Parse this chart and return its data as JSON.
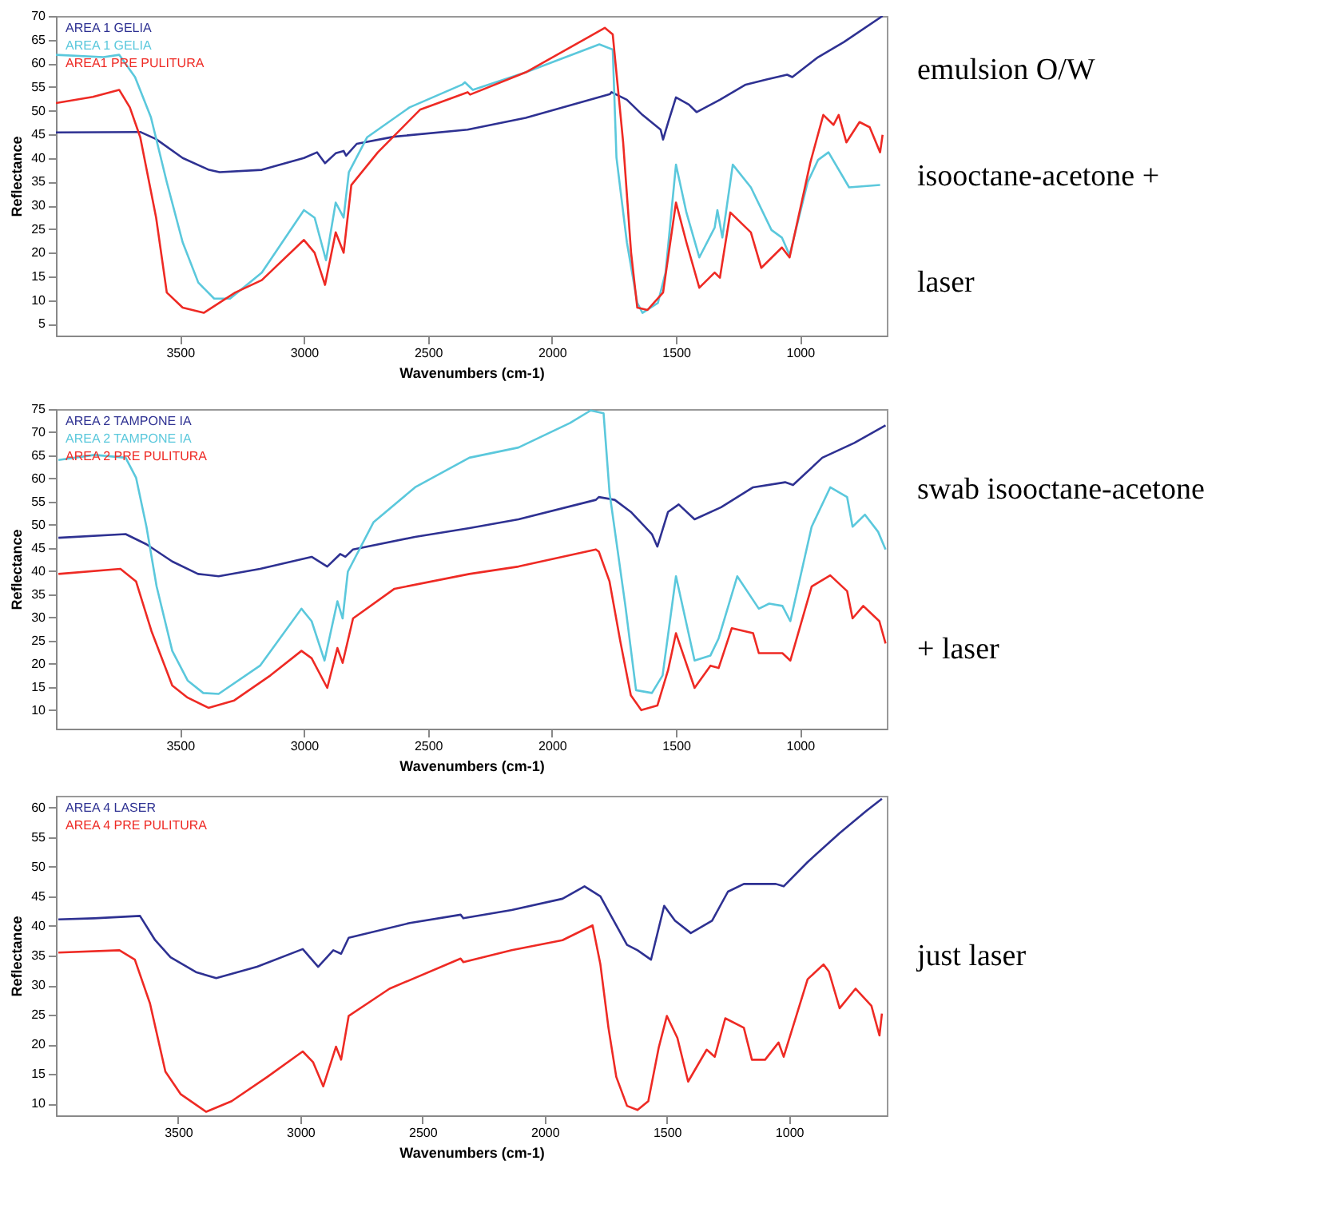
{
  "chart_data": [
    {
      "type": "line",
      "xlabel": "Wavenumbers (cm-1)",
      "ylabel": "Reflectance",
      "xlim": [
        4000,
        650
      ],
      "xticks": [
        3500,
        3000,
        2500,
        2000,
        1500,
        1000
      ],
      "ylim": [
        2.5,
        70
      ],
      "yticks": [
        5,
        10,
        15,
        20,
        25,
        30,
        35,
        40,
        45,
        50,
        55,
        60,
        65,
        70
      ],
      "grid": false,
      "legend": "top left",
      "marker": "none",
      "line_style": "solid",
      "annotations": [
        "emulsion O/W",
        "isooctane-acetone +",
        "laser"
      ],
      "series": [
        {
          "name": "AREA 1 GELIA",
          "color": "#2e3192",
          "x": [
            4000,
            3660,
            3596,
            3489,
            3383,
            3340,
            3170,
            3000,
            2947,
            2915,
            2872,
            2840,
            2830,
            2787,
            2638,
            2340,
            2106,
            1766,
            1760,
            1698,
            1635,
            1562,
            1552,
            1531,
            1500,
            1448,
            1417,
            1323,
            1219,
            1135,
            1052,
            1031,
            927,
            823,
            667
          ],
          "values": [
            45.4,
            45.5,
            44,
            40,
            37.5,
            37,
            37.5,
            40,
            41.2,
            38.9,
            41,
            41.5,
            40.5,
            43,
            44.5,
            46,
            48.5,
            53.5,
            53.9,
            52.3,
            49.1,
            46,
            43.9,
            47.6,
            52.8,
            51.3,
            49.7,
            52.3,
            55.5,
            56.6,
            57.6,
            57.1,
            61.3,
            64.5,
            70
          ]
        },
        {
          "name": "AREA 1 GELIA",
          "color": "#5bc8dc",
          "x": [
            4000,
            3809,
            3745,
            3681,
            3617,
            3553,
            3489,
            3426,
            3362,
            3298,
            3170,
            3000,
            2957,
            2911,
            2872,
            2840,
            2819,
            2745,
            2574,
            2362,
            2351,
            2319,
            2106,
            1809,
            1755,
            1740,
            1698,
            1656,
            1635,
            1573,
            1542,
            1500,
            1458,
            1406,
            1344,
            1333,
            1313,
            1271,
            1198,
            1115,
            1073,
            1042,
            969,
            927,
            885,
            802,
            677
          ],
          "values": [
            61.8,
            61.3,
            61.8,
            57.1,
            48.6,
            34.9,
            22.2,
            13.7,
            10.3,
            10.3,
            15.8,
            29,
            27.4,
            18.4,
            30.6,
            27.4,
            37,
            44.4,
            50.7,
            55.5,
            56,
            54.4,
            58.1,
            64,
            62.9,
            40.1,
            22.2,
            9.4,
            7.3,
            9.4,
            15.8,
            38.6,
            28.5,
            19,
            25.3,
            29,
            23.2,
            38.6,
            33.8,
            24.8,
            23.2,
            19.5,
            34.9,
            39.6,
            41.2,
            33.8,
            34.3
          ]
        },
        {
          "name": "AREA1 PRE PULITURA",
          "color": "#ee2a24",
          "x": [
            4000,
            3851,
            3745,
            3702,
            3660,
            3596,
            3553,
            3489,
            3404,
            3277,
            3170,
            3000,
            2957,
            2915,
            2872,
            2840,
            2809,
            2702,
            2532,
            2340,
            2330,
            2106,
            1851,
            1787,
            1755,
            1713,
            1681,
            1656,
            1615,
            1552,
            1500,
            1458,
            1406,
            1344,
            1323,
            1281,
            1198,
            1156,
            1073,
            1042,
            958,
            906,
            865,
            844,
            813,
            760,
            719,
            677,
            667
          ],
          "values": [
            51.6,
            52.9,
            54.4,
            50.7,
            44.4,
            27.4,
            11.6,
            8.4,
            7.3,
            11.6,
            14.2,
            22.7,
            20,
            13.2,
            24.3,
            20,
            34.3,
            41.2,
            50.2,
            53.9,
            53.4,
            58.1,
            65.6,
            67.5,
            66.1,
            43.3,
            20,
            8.4,
            7.9,
            11.6,
            30.6,
            22.2,
            12.6,
            15.8,
            14.7,
            28.5,
            24.3,
            16.8,
            21.1,
            19,
            39.1,
            49.1,
            47,
            49.1,
            43.3,
            47.6,
            46.5,
            41.2,
            44.9
          ]
        }
      ]
    },
    {
      "type": "line",
      "xlabel": "Wavenumbers (cm-1)",
      "ylabel": "Reflectance",
      "xlim": [
        4000,
        650
      ],
      "xticks": [
        3500,
        3000,
        2500,
        2000,
        1500,
        1000
      ],
      "ylim": [
        6,
        75
      ],
      "yticks": [
        10,
        15,
        20,
        25,
        30,
        35,
        40,
        45,
        50,
        55,
        60,
        65,
        70,
        75
      ],
      "grid": false,
      "legend": "top left",
      "marker": "none",
      "line_style": "solid",
      "annotations": [
        "swab isooctane-acetone",
        "+ laser"
      ],
      "series": [
        {
          "name": "AREA 2 TAMPONE IA",
          "color": "#2e3192",
          "x": [
            3990,
            3719,
            3635,
            3531,
            3427,
            3344,
            3177,
            2969,
            2906,
            2854,
            2833,
            2802,
            2552,
            2333,
            2135,
            1823,
            1811,
            1747,
            1682,
            1597,
            1575,
            1532,
            1489,
            1425,
            1318,
            1189,
            1060,
            1028,
            910,
            781,
            655
          ],
          "values": [
            47.2,
            48,
            45.8,
            42.1,
            39.4,
            38.9,
            40.5,
            43.1,
            41,
            43.7,
            43.1,
            44.7,
            47.4,
            49.3,
            51.2,
            55.4,
            56,
            55.4,
            52.8,
            48,
            45.3,
            52.8,
            54.4,
            51.2,
            53.8,
            58.1,
            59.2,
            58.6,
            64.5,
            67.7,
            71.5
          ]
        },
        {
          "name": "AREA 2 TAMPONE IA",
          "color": "#5bc8dc",
          "x": [
            3990,
            3844,
            3719,
            3677,
            3635,
            3594,
            3531,
            3469,
            3406,
            3344,
            3177,
            3010,
            2969,
            2917,
            2865,
            2844,
            2823,
            2719,
            2552,
            2333,
            2135,
            1927,
            1844,
            1792,
            1768,
            1704,
            1661,
            1597,
            1554,
            1500,
            1425,
            1361,
            1328,
            1253,
            1166,
            1124,
            1071,
            1039,
            953,
            878,
            810,
            788,
            738,
            685,
            655
          ],
          "values": [
            64,
            65.1,
            64.5,
            60.2,
            49.6,
            36.7,
            22.8,
            16.4,
            13.7,
            13.5,
            19.6,
            31.9,
            29.2,
            20.7,
            33.5,
            29.8,
            39.9,
            50.6,
            58.1,
            64.5,
            66.7,
            72,
            74.7,
            74.1,
            57,
            32.5,
            14.3,
            13.7,
            17.5,
            38.9,
            20.7,
            21.8,
            25.5,
            38.9,
            31.9,
            33,
            32.5,
            29.2,
            49.6,
            58.1,
            56,
            49.6,
            52.2,
            48.5,
            44.7
          ]
        },
        {
          "name": "AREA 2 PRE PULITURA",
          "color": "#ee2a24",
          "x": [
            3990,
            3740,
            3677,
            3615,
            3531,
            3469,
            3385,
            3281,
            3135,
            3010,
            2969,
            2906,
            2865,
            2844,
            2802,
            2635,
            2333,
            2135,
            1823,
            1811,
            1768,
            1725,
            1682,
            1640,
            1575,
            1532,
            1500,
            1425,
            1361,
            1328,
            1275,
            1189,
            1166,
            1071,
            1039,
            953,
            878,
            810,
            788,
            745,
            680,
            655
          ],
          "values": [
            39.4,
            40.5,
            37.8,
            27.1,
            15.3,
            12.7,
            10.5,
            12.1,
            17.5,
            22.8,
            21.2,
            14.8,
            23.4,
            20.2,
            29.8,
            36.2,
            39.4,
            41,
            44.7,
            44.2,
            37.8,
            25,
            13.2,
            10,
            11,
            18.6,
            26.6,
            14.8,
            19.6,
            19.1,
            27.7,
            26.6,
            22.3,
            22.3,
            20.7,
            36.7,
            39.1,
            35.7,
            29.8,
            32.5,
            29.2,
            24.4
          ]
        }
      ]
    },
    {
      "type": "line",
      "xlabel": "Wavenumbers (cm-1)",
      "ylabel": "Reflectance",
      "xlim": [
        4000,
        600
      ],
      "xticks": [
        3500,
        3000,
        2500,
        2000,
        1500,
        1000
      ],
      "ylim": [
        8,
        62
      ],
      "yticks": [
        10,
        15,
        20,
        25,
        30,
        35,
        40,
        45,
        50,
        55,
        60
      ],
      "grid": false,
      "legend": "top left",
      "marker": "none",
      "line_style": "solid",
      "annotations": [
        "just laser"
      ],
      "series": [
        {
          "name": "AREA 4 LASER",
          "color": "#2e3192",
          "x": [
            3990,
            3844,
            3656,
            3594,
            3531,
            3427,
            3344,
            3177,
            2990,
            2927,
            2865,
            2833,
            2802,
            2552,
            2344,
            2333,
            2135,
            1927,
            1837,
            1772,
            1707,
            1663,
            1620,
            1565,
            1511,
            1467,
            1402,
            1315,
            1250,
            1185,
            1054,
            1022,
            924,
            793,
            685,
            620
          ],
          "values": [
            41.1,
            41.3,
            41.7,
            37.6,
            34.7,
            32.2,
            31.2,
            33.1,
            36.1,
            33.1,
            35.9,
            35.3,
            38,
            40.5,
            41.9,
            41.3,
            42.7,
            44.6,
            46.7,
            45,
            40.1,
            36.8,
            35.9,
            34.3,
            43.4,
            40.9,
            38.8,
            40.9,
            45.8,
            47.1,
            47.1,
            46.7,
            50.8,
            55.7,
            59.4,
            61.5
          ]
        },
        {
          "name": "AREA 4 PRE PULITURA",
          "color": "#ee2a24",
          "x": [
            3990,
            3740,
            3677,
            3615,
            3552,
            3490,
            3385,
            3281,
            3135,
            2990,
            2948,
            2906,
            2854,
            2833,
            2802,
            2635,
            2344,
            2333,
            2135,
            1927,
            1804,
            1772,
            1739,
            1707,
            1663,
            1620,
            1576,
            1533,
            1500,
            1457,
            1413,
            1337,
            1304,
            1261,
            1185,
            1152,
            1098,
            1043,
            1022,
            924,
            859,
            837,
            793,
            728,
            663,
            630,
            620
          ],
          "values": [
            35.5,
            35.9,
            34.3,
            26.9,
            15.4,
            11.6,
            8.6,
            10.4,
            14.5,
            18.8,
            17,
            12.9,
            19.6,
            17.4,
            24.8,
            29.4,
            34.5,
            33.9,
            35.9,
            37.6,
            40.1,
            33.5,
            22.8,
            14.5,
            9.6,
            8.9,
            10.4,
            19.5,
            24.8,
            21.1,
            13.7,
            19.1,
            17.9,
            24.4,
            22.8,
            17.4,
            17.4,
            20.3,
            17.9,
            31,
            33.5,
            32.3,
            26.1,
            29.4,
            26.5,
            21.5,
            25.2
          ]
        }
      ]
    }
  ]
}
